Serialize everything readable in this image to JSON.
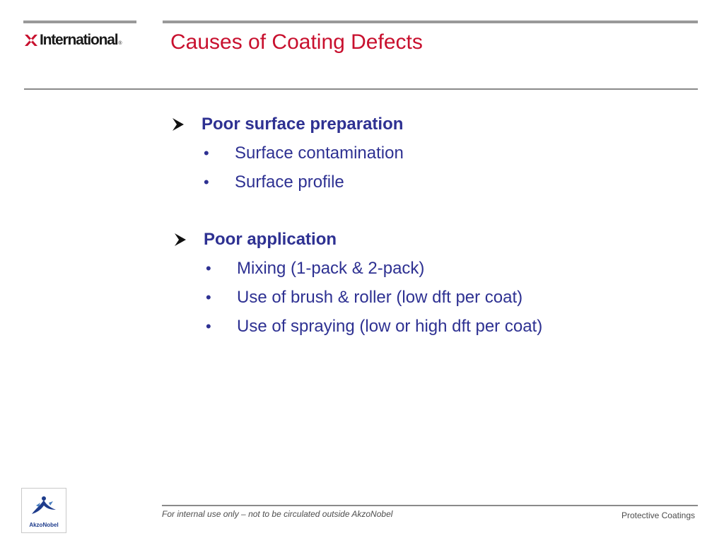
{
  "header": {
    "logo_text": "International",
    "logo_registered": "®",
    "title": "Causes of Coating Defects"
  },
  "sections": [
    {
      "heading": "Poor surface preparation",
      "items": [
        "Surface contamination",
        "Surface profile"
      ]
    },
    {
      "heading": "Poor application",
      "items": [
        "Mixing (1-pack & 2-pack)",
        "Use of brush & roller (low dft per coat)",
        "Use of spraying (low or high dft per coat)"
      ]
    }
  ],
  "footer": {
    "logo_text": "AkzoNobel",
    "left_text": "For internal use only – not to be circulated outside AkzoNobel",
    "right_text": "Protective Coatings"
  },
  "colors": {
    "title": "#c8102e",
    "body_text": "#2e3192",
    "logo_mark": "#c8102e",
    "rules": "#8a8a8a"
  },
  "icons": {
    "section_marker": "arrowhead-bullet-icon",
    "list_marker": "dot-bullet-icon",
    "logo_mark": "international-x-logo-icon",
    "footer_logo": "akzonobel-logo-icon"
  }
}
